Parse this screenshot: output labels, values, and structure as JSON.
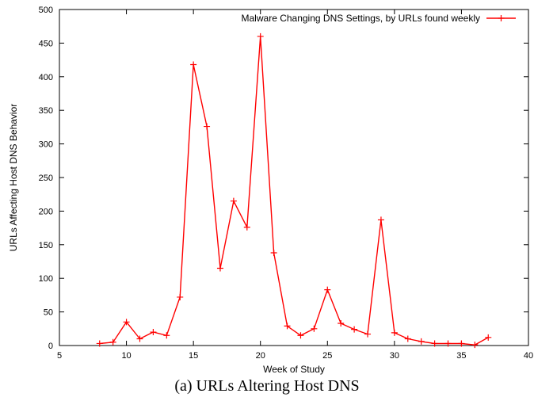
{
  "caption": "(a) URLs Altering Host DNS",
  "chart_data": {
    "type": "line",
    "xlabel": "Week of Study",
    "ylabel": "URLs Affecting Host DNS Behavior",
    "xlim": [
      5,
      40
    ],
    "ylim": [
      0,
      500
    ],
    "xticks": [
      5,
      10,
      15,
      20,
      25,
      30,
      35,
      40
    ],
    "yticks": [
      0,
      50,
      100,
      150,
      200,
      250,
      300,
      350,
      400,
      450,
      500
    ],
    "legend_position": "top-right",
    "grid": false,
    "series": [
      {
        "name": "Malware Changing DNS Settings, by URLs found weekly",
        "color": "#ff0000",
        "marker": "plus",
        "x": [
          8,
          9,
          10,
          11,
          12,
          13,
          14,
          15,
          16,
          17,
          18,
          19,
          20,
          21,
          22,
          23,
          24,
          25,
          26,
          27,
          28,
          29,
          30,
          31,
          32,
          33,
          34,
          35,
          36,
          37
        ],
        "y": [
          3,
          5,
          35,
          10,
          20,
          15,
          72,
          418,
          326,
          115,
          215,
          176,
          460,
          138,
          29,
          15,
          25,
          83,
          33,
          24,
          17,
          187,
          19,
          10,
          6,
          3,
          3,
          3,
          1,
          12
        ]
      }
    ]
  }
}
